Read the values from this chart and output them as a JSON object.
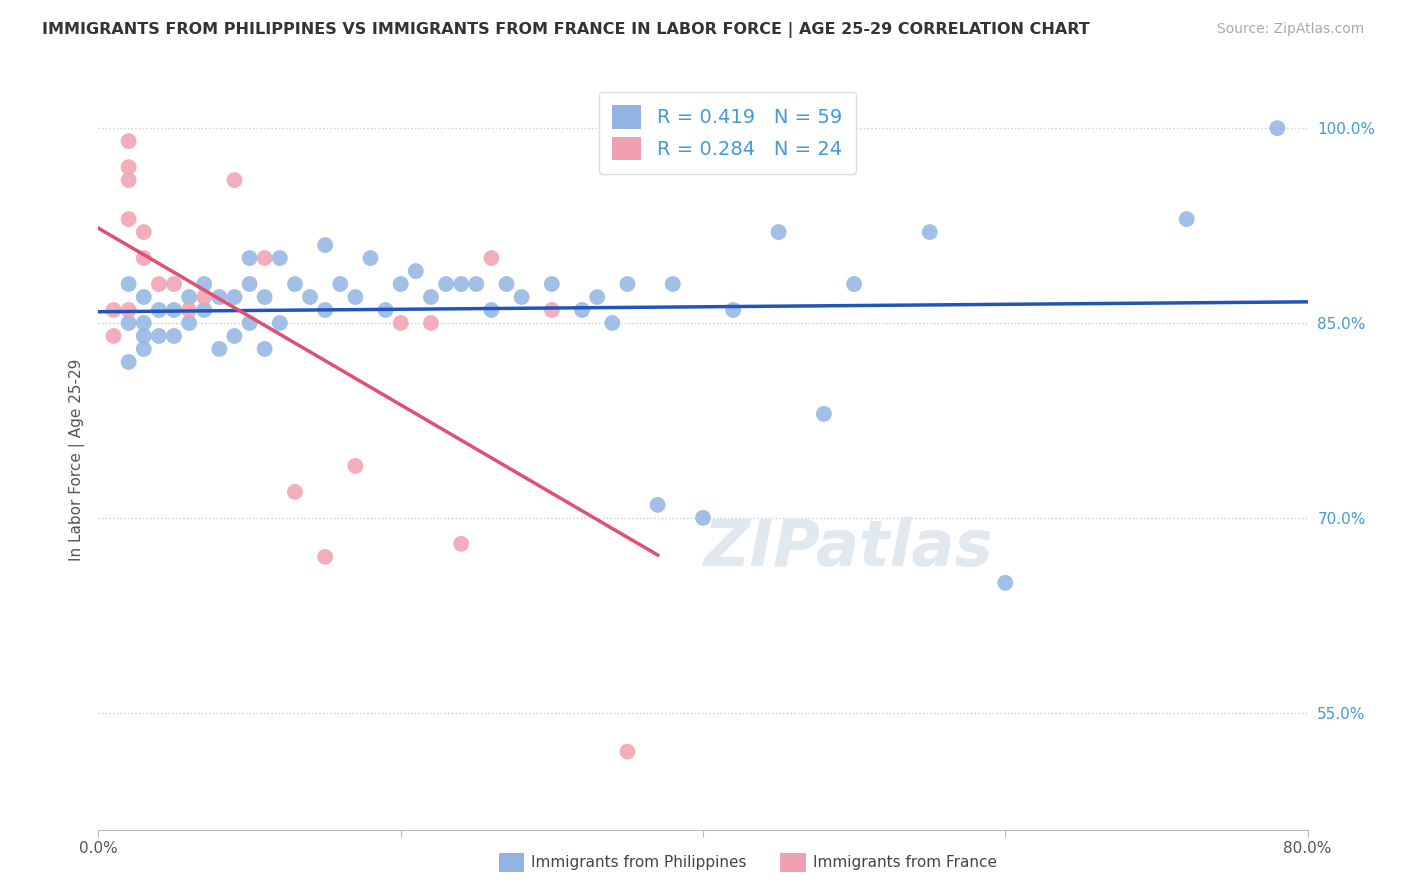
{
  "title": "IMMIGRANTS FROM PHILIPPINES VS IMMIGRANTS FROM FRANCE IN LABOR FORCE | AGE 25-29 CORRELATION CHART",
  "source": "Source: ZipAtlas.com",
  "ylabel": "In Labor Force | Age 25-29",
  "xlim": [
    0.0,
    0.8
  ],
  "ylim": [
    0.46,
    1.03
  ],
  "yticks": [
    0.55,
    0.7,
    0.85,
    1.0
  ],
  "yticklabels": [
    "55.0%",
    "70.0%",
    "85.0%",
    "100.0%"
  ],
  "R_phil": 0.419,
  "N_phil": 59,
  "R_france": 0.284,
  "N_france": 24,
  "phil_color": "#92B4E3",
  "france_color": "#F0A0B0",
  "phil_line_color": "#2255BB",
  "france_line_color": "#E05070",
  "legend_text_color": "#4499DD",
  "legend_label_phil": "Immigrants from Philippines",
  "legend_label_france": "Immigrants from France",
  "phil_x": [
    0.02,
    0.02,
    0.02,
    0.03,
    0.03,
    0.03,
    0.03,
    0.04,
    0.04,
    0.05,
    0.05,
    0.06,
    0.06,
    0.07,
    0.07,
    0.08,
    0.08,
    0.09,
    0.09,
    0.1,
    0.1,
    0.1,
    0.11,
    0.11,
    0.12,
    0.12,
    0.13,
    0.14,
    0.15,
    0.15,
    0.16,
    0.17,
    0.18,
    0.19,
    0.2,
    0.21,
    0.22,
    0.23,
    0.24,
    0.25,
    0.26,
    0.27,
    0.28,
    0.3,
    0.32,
    0.33,
    0.34,
    0.35,
    0.37,
    0.38,
    0.4,
    0.42,
    0.45,
    0.48,
    0.5,
    0.55,
    0.6,
    0.72,
    0.78
  ],
  "phil_y": [
    0.88,
    0.85,
    0.82,
    0.87,
    0.85,
    0.84,
    0.83,
    0.86,
    0.84,
    0.86,
    0.84,
    0.87,
    0.85,
    0.88,
    0.86,
    0.87,
    0.83,
    0.87,
    0.84,
    0.9,
    0.88,
    0.85,
    0.87,
    0.83,
    0.9,
    0.85,
    0.88,
    0.87,
    0.91,
    0.86,
    0.88,
    0.87,
    0.9,
    0.86,
    0.88,
    0.89,
    0.87,
    0.88,
    0.88,
    0.88,
    0.86,
    0.88,
    0.87,
    0.88,
    0.86,
    0.87,
    0.85,
    0.88,
    0.71,
    0.88,
    0.7,
    0.86,
    0.92,
    0.78,
    0.88,
    0.92,
    0.65,
    0.93,
    1.0
  ],
  "france_x": [
    0.01,
    0.01,
    0.02,
    0.02,
    0.02,
    0.02,
    0.02,
    0.03,
    0.03,
    0.04,
    0.05,
    0.06,
    0.07,
    0.09,
    0.11,
    0.13,
    0.15,
    0.17,
    0.2,
    0.22,
    0.24,
    0.26,
    0.3,
    0.35
  ],
  "france_y": [
    0.86,
    0.84,
    0.99,
    0.97,
    0.96,
    0.93,
    0.86,
    0.92,
    0.9,
    0.88,
    0.88,
    0.86,
    0.87,
    0.96,
    0.9,
    0.72,
    0.67,
    0.74,
    0.85,
    0.85,
    0.68,
    0.9,
    0.86,
    0.52
  ],
  "france_line_xmax": 0.37
}
